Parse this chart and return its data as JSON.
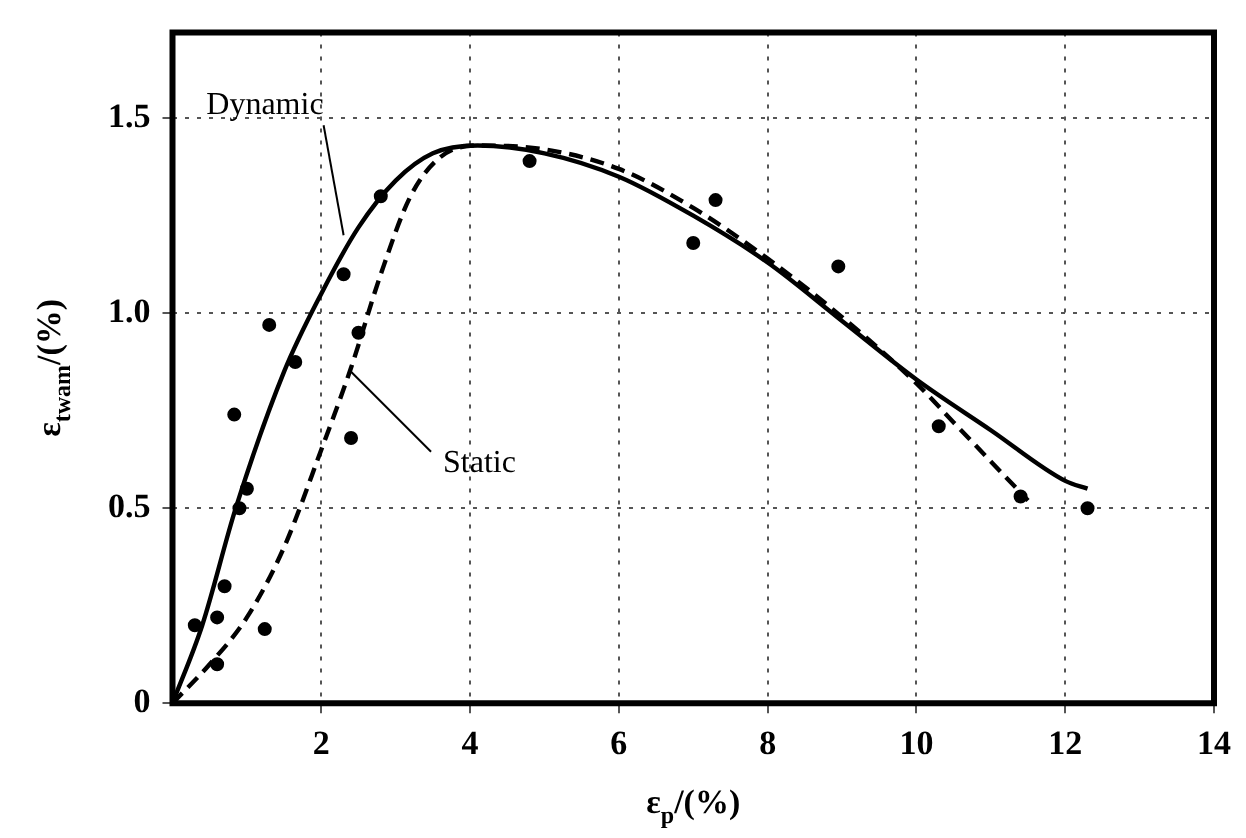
{
  "chart_data": {
    "type": "line",
    "xlabel": "ε$_{p}$/(%)",
    "ylabel": "ε$_{twam}$/(%)",
    "xlim": [
      0,
      14
    ],
    "ylim": [
      0,
      1.72
    ],
    "xticks": [
      2,
      4,
      6,
      8,
      10,
      12,
      14
    ],
    "yticks": [
      0,
      {
        "value": 0.5,
        "label": "0.5"
      },
      {
        "value": 1,
        "label": "1.0"
      },
      {
        "value": 1.5,
        "label": "1.5"
      }
    ],
    "grid": true,
    "legend": false,
    "annotations": [
      {
        "text": "Dynamic",
        "x": 2.3,
        "y": 1.2
      },
      {
        "text": "Static",
        "x": 2.4,
        "y": 0.85
      }
    ],
    "series": [
      {
        "line_style": "solid",
        "color": "#000000",
        "x": [
          0,
          0.4,
          0.85,
          1.5,
          2,
          2.5,
          3,
          3.5,
          4.1,
          5,
          6,
          7,
          8,
          9,
          10,
          11,
          12,
          12.3
        ],
        "values": [
          0,
          0.2,
          0.5,
          0.85,
          1.05,
          1.22,
          1.34,
          1.41,
          1.43,
          1.41,
          1.35,
          1.25,
          1.13,
          0.98,
          0.83,
          0.7,
          0.57,
          0.55
        ]
      },
      {
        "line_style": "dashed",
        "color": "#000000",
        "x": [
          0,
          0.5,
          1,
          1.5,
          2,
          2.4,
          2.8,
          3.2,
          3.6,
          4.1,
          5,
          6,
          7,
          8,
          9,
          10,
          10.5,
          11,
          11.5
        ],
        "values": [
          0,
          0.1,
          0.22,
          0.4,
          0.65,
          0.86,
          1.1,
          1.3,
          1.4,
          1.43,
          1.42,
          1.37,
          1.27,
          1.14,
          0.99,
          0.82,
          0.72,
          0.62,
          0.52
        ]
      },
      {
        "type": "scatter",
        "marker": "circle",
        "color": "#000000",
        "x": [
          0.3,
          0.6,
          0.7,
          0.83,
          0.9,
          1.0,
          1.24,
          0.6,
          1.65,
          1.3,
          2.3,
          2.4,
          2.5,
          2.8,
          4.8,
          7.0,
          7.3,
          8.95,
          10.3,
          11.4,
          12.3
        ],
        "values": [
          0.2,
          0.22,
          0.3,
          0.74,
          0.5,
          0.55,
          0.19,
          0.1,
          0.875,
          0.97,
          1.1,
          0.68,
          0.95,
          1.3,
          1.39,
          1.18,
          1.29,
          1.12,
          0.71,
          0.53,
          0.5
        ]
      }
    ]
  }
}
